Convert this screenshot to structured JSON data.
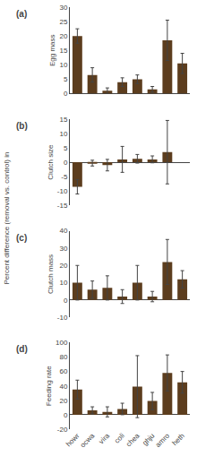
{
  "chart_data": [
    {
      "type": "bar",
      "title": "(a)",
      "ylabel": "Egg mass",
      "categories": [
        "howr",
        "ocwa",
        "vira",
        "coli",
        "chea",
        "ghju",
        "amro",
        "heth"
      ],
      "values": [
        20,
        6.5,
        1,
        4,
        5,
        1.5,
        18.5,
        10.5
      ],
      "errors": [
        2.5,
        2.5,
        1.0,
        1.5,
        1.5,
        1.0,
        7.0,
        3.5
      ],
      "color": "#5c3d1e",
      "ylim": [
        0,
        30
      ],
      "yticks": [
        0,
        5,
        10,
        15,
        20,
        25,
        30
      ],
      "grid": false,
      "tick_labels": "y"
    },
    {
      "type": "bar",
      "title": "(b)",
      "ylabel": "Clutch size",
      "categories": [
        "howr",
        "ocwa",
        "vira",
        "coli",
        "chea",
        "ghju",
        "amro",
        "heth"
      ],
      "values": [
        -8.5,
        -0.3,
        -1.0,
        1.0,
        1.2,
        1.0,
        3.5,
        null
      ],
      "errors": [
        2.5,
        1.0,
        2.0,
        4.5,
        1.5,
        1.2,
        11.0,
        null
      ],
      "color": "#5c3d1e",
      "ylim": [
        -15,
        15
      ],
      "yticks": [
        -15,
        -10,
        -5,
        0,
        5,
        10,
        15
      ],
      "grid": false,
      "tick_labels": "y",
      "annotations": [
        "Percent difference (removal vs. control) in"
      ]
    },
    {
      "type": "bar",
      "title": "(c)",
      "ylabel": "Clutch mass",
      "categories": [
        "howr",
        "ocwa",
        "vira",
        "coli",
        "chea",
        "ghju",
        "amro",
        "heth"
      ],
      "values": [
        10,
        6,
        7,
        2,
        10,
        2,
        22,
        12
      ],
      "errors": [
        10,
        5,
        7,
        4,
        10,
        3,
        13,
        5
      ],
      "color": "#5c3d1e",
      "ylim": [
        -10,
        40
      ],
      "yticks": [
        -10,
        0,
        10,
        20,
        30,
        40
      ],
      "grid": false,
      "tick_labels": "y"
    },
    {
      "type": "bar",
      "title": "(d)",
      "ylabel": "Feeding rate",
      "categories": [
        "howr",
        "ocwa",
        "vira",
        "coli",
        "chea",
        "ghju",
        "amro",
        "heth"
      ],
      "values": [
        35,
        6,
        4,
        8,
        39,
        19,
        58,
        45
      ],
      "errors": [
        13,
        5,
        7,
        8,
        43,
        12,
        25,
        15
      ],
      "color": "#5c3d1e",
      "ylim": [
        -20,
        100
      ],
      "yticks": [
        -20,
        0,
        20,
        40,
        60,
        80,
        100
      ],
      "grid": false
    }
  ]
}
